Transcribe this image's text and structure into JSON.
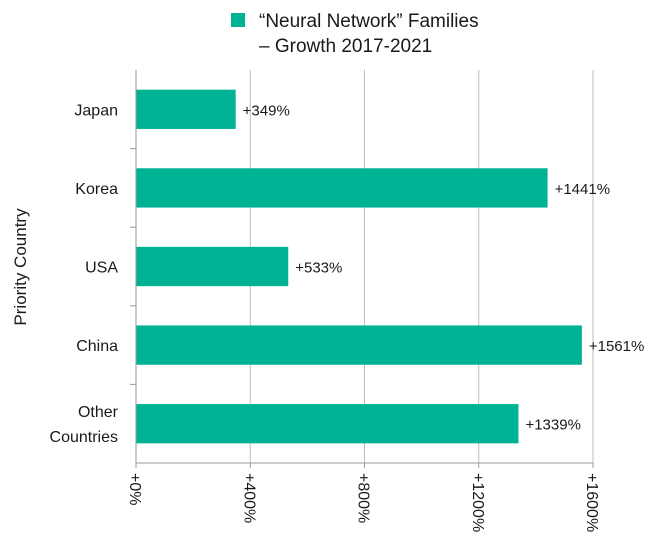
{
  "chart_data": {
    "type": "bar",
    "orientation": "horizontal",
    "legend": {
      "line1": "“Neural Network” Families",
      "line2": "– Growth 2017-2021",
      "color": "#00b294"
    },
    "ylabel": "Priority Country",
    "xlabel": "",
    "categories": [
      [
        "Japan"
      ],
      [
        "Korea"
      ],
      [
        "USA"
      ],
      [
        "China"
      ],
      [
        "Other",
        "Countries"
      ]
    ],
    "values": [
      349,
      1441,
      533,
      1561,
      1339
    ],
    "value_labels": [
      "+349%",
      "+1441%",
      "+533%",
      "+1561%",
      "+1339%"
    ],
    "xlim": [
      0,
      1600
    ],
    "xticks": [
      0,
      400,
      800,
      1200,
      1600
    ],
    "xtick_labels": [
      "+0%",
      "+400%",
      "+800%",
      "+1200%",
      "+1600%"
    ],
    "grid": "vertical",
    "bar_color": "#00b294",
    "grid_color": "#bdbdbd",
    "axis_color": "#9a9a9a"
  }
}
